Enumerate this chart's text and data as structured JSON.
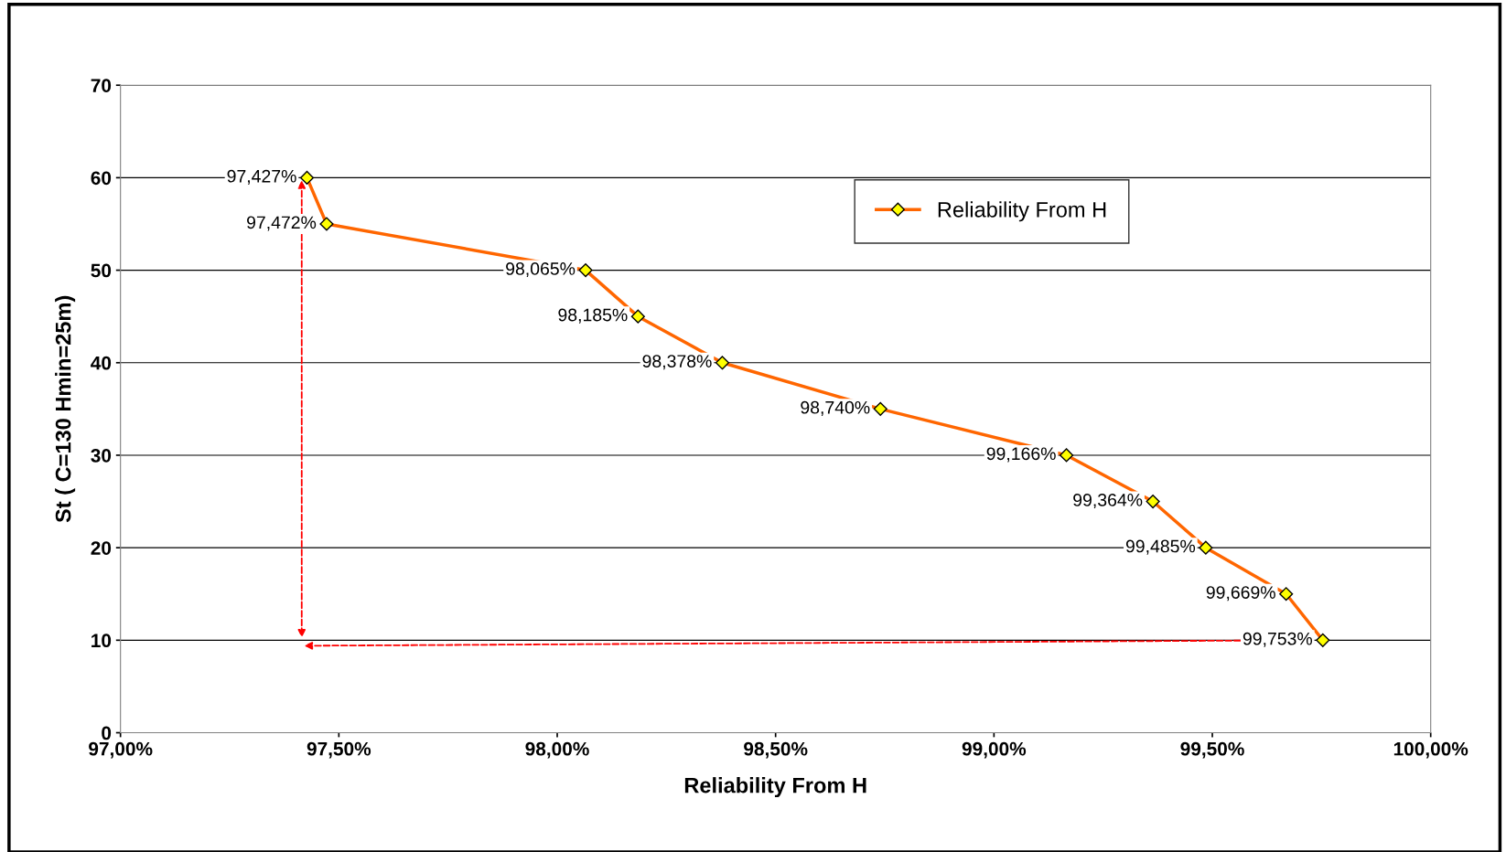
{
  "chart_data": {
    "type": "line",
    "xlabel": "Reliability From H",
    "ylabel": "St ( C=130 Hmin=25m)",
    "x": [
      97.427,
      97.472,
      98.065,
      98.185,
      98.378,
      98.74,
      99.166,
      99.364,
      99.485,
      99.669,
      99.753
    ],
    "series": [
      {
        "name": "Reliability From H",
        "color": "#ff6600",
        "values": [
          60,
          55,
          50,
          45,
          40,
          35,
          30,
          25,
          20,
          15,
          10
        ]
      }
    ],
    "annotations": [
      {
        "text": "97,427%",
        "x": 97.427,
        "y": 60
      },
      {
        "text": "97,472%",
        "x": 97.472,
        "y": 55
      },
      {
        "text": "98,065%",
        "x": 98.065,
        "y": 50
      },
      {
        "text": "98,185%",
        "x": 98.185,
        "y": 45
      },
      {
        "text": "98,378%",
        "x": 98.378,
        "y": 40
      },
      {
        "text": "98,740%",
        "x": 98.74,
        "y": 35
      },
      {
        "text": "99,166%",
        "x": 99.166,
        "y": 30
      },
      {
        "text": "99,364%",
        "x": 99.364,
        "y": 25
      },
      {
        "text": "99,485%",
        "x": 99.485,
        "y": 20
      },
      {
        "text": "99,669%",
        "x": 99.669,
        "y": 15
      },
      {
        "text": "99,753%",
        "x": 99.753,
        "y": 10
      }
    ],
    "xlim": [
      97,
      100
    ],
    "xticks": [
      {
        "value": 97,
        "label": "97,00%"
      },
      {
        "value": 97.5,
        "label": "97,50%"
      },
      {
        "value": 98,
        "label": "98,00%"
      },
      {
        "value": 98.5,
        "label": "98,50%"
      },
      {
        "value": 99,
        "label": "99,00%"
      },
      {
        "value": 99.5,
        "label": "99,50%"
      },
      {
        "value": 100,
        "label": "100,00%"
      }
    ],
    "ylim": [
      0,
      70
    ],
    "yticks": [
      0,
      10,
      20,
      30,
      40,
      50,
      60,
      70
    ],
    "grid": "y",
    "legend": "top right",
    "marker": "diamond",
    "line_style": "solid"
  }
}
